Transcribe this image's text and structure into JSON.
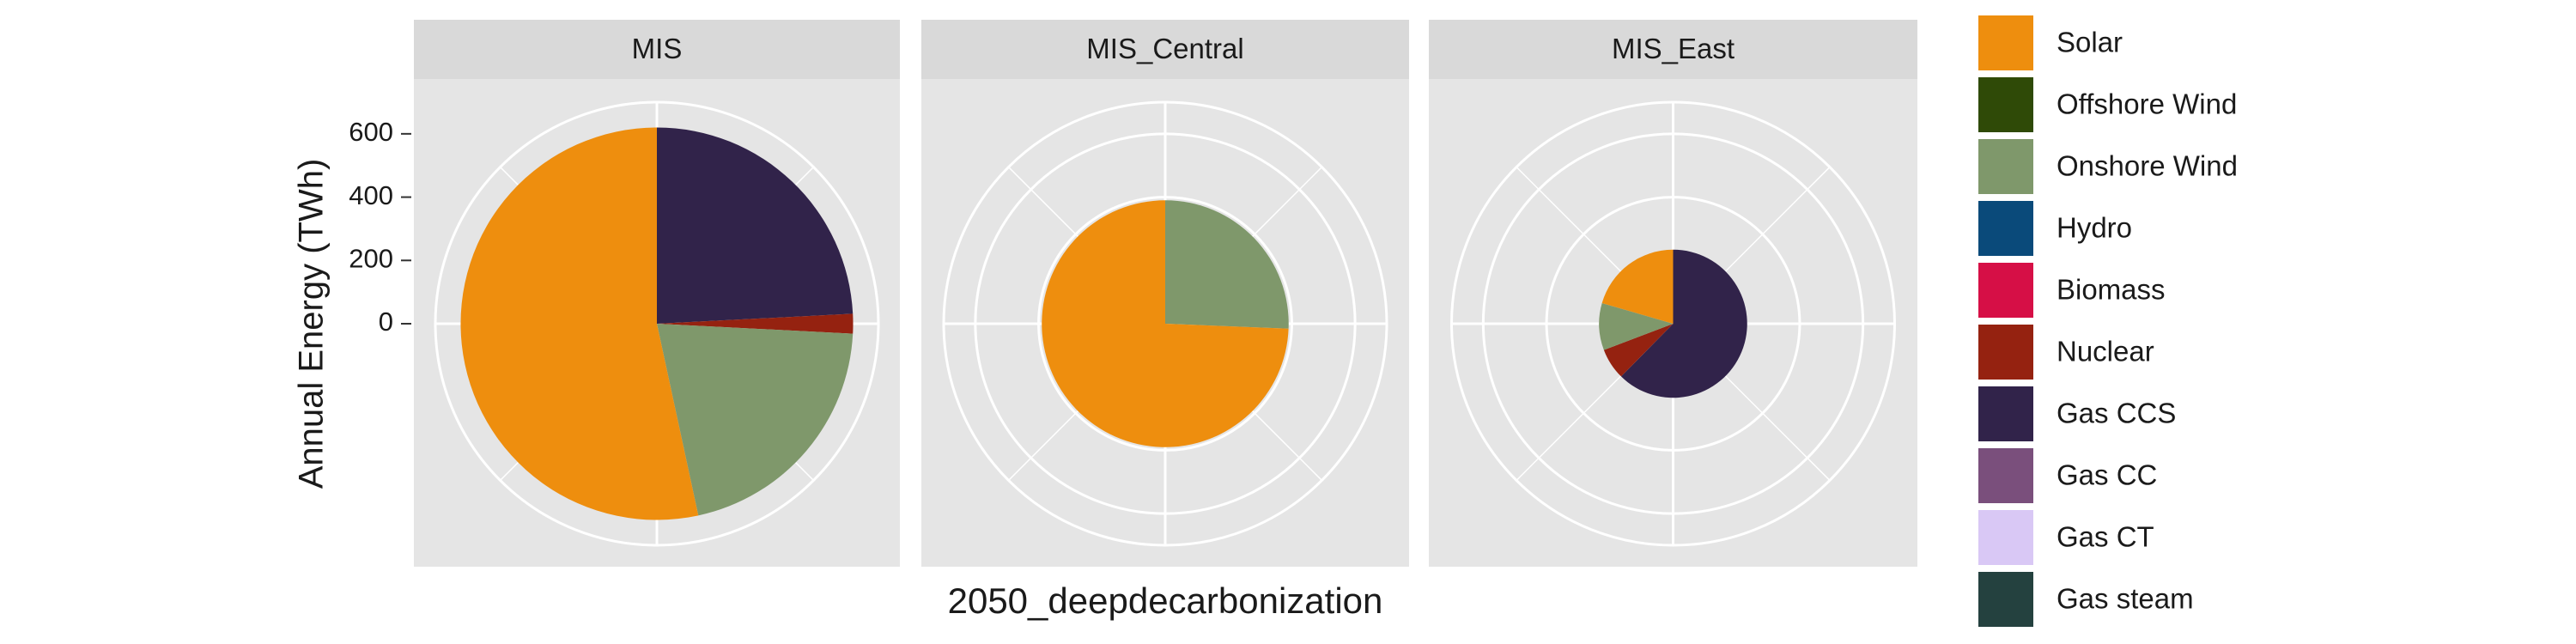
{
  "chart_data": {
    "type": "pie",
    "x_label": "2050_deepdecarbonization",
    "y_label": "Annual Energy (TWh)",
    "categories": [
      "MIS",
      "MIS_Central",
      "MIS_East"
    ],
    "ylim": [
      0,
      700
    ],
    "yticks": [
      0,
      200,
      400,
      600
    ],
    "series": [
      {
        "name": "Solar",
        "color": "#EE8E0E",
        "values": [
          331,
          290,
          48
        ]
      },
      {
        "name": "Offshore Wind",
        "color": "#2F4A07",
        "values": [
          0,
          0,
          0
        ]
      },
      {
        "name": "Onshore Wind",
        "color": "#7F986B",
        "values": [
          129,
          100,
          24
        ]
      },
      {
        "name": "Hydro",
        "color": "#0A4A7A",
        "values": [
          0,
          0,
          0
        ]
      },
      {
        "name": "Biomass",
        "color": "#D60F46",
        "values": [
          0,
          0,
          0
        ]
      },
      {
        "name": "Nuclear",
        "color": "#952210",
        "values": [
          10,
          0,
          16
        ]
      },
      {
        "name": "Gas CCS",
        "color": "#31234A",
        "values": [
          150,
          0,
          146
        ]
      },
      {
        "name": "Gas CC",
        "color": "#7A4F7C",
        "values": [
          0,
          0,
          0
        ]
      },
      {
        "name": "Gas CT",
        "color": "#D9C8F5",
        "values": [
          0,
          0,
          0
        ]
      },
      {
        "name": "Gas steam",
        "color": "#24413F",
        "values": [
          0,
          0,
          0
        ]
      }
    ]
  }
}
